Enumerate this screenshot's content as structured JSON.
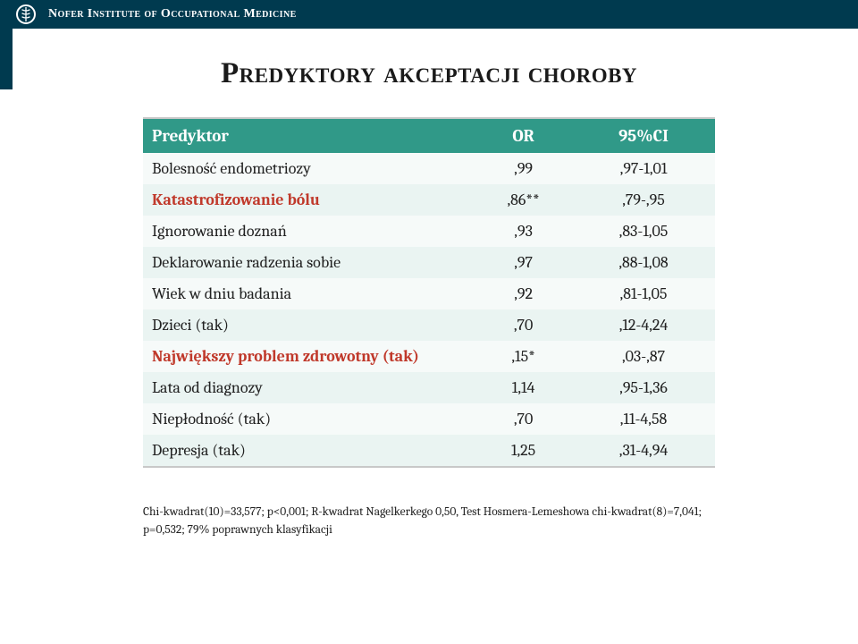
{
  "header": {
    "institution": "Nofer Institute of Occupational Medicine",
    "header_bg": "#003a4f"
  },
  "title": "Predyktory akceptacji choroby",
  "table": {
    "header_bg": "#309988",
    "header_fg": "#ffffff",
    "row_even_bg": "#eaf4f2",
    "row_odd_bg": "#f6faf9",
    "highlight_color": "#c0392b",
    "columns": [
      "Predyktor",
      "OR",
      "95%CI"
    ],
    "rows": [
      {
        "label": "Bolesność endometriozy",
        "or": ",99",
        "ci": ",97-1,01",
        "highlight": false
      },
      {
        "label": "Katastrofizowanie bólu",
        "or": ",86**",
        "ci": ",79-,95",
        "highlight": true
      },
      {
        "label": "Ignorowanie doznań",
        "or": ",93",
        "ci": ",83-1,05",
        "highlight": false
      },
      {
        "label": "Deklarowanie radzenia sobie",
        "or": ",97",
        "ci": ",88-1,08",
        "highlight": false
      },
      {
        "label": "Wiek w dniu badania",
        "or": ",92",
        "ci": ",81-1,05",
        "highlight": false
      },
      {
        "label": "Dzieci (tak)",
        "or": ",70",
        "ci": ",12-4,24",
        "highlight": false
      },
      {
        "label": "Największy problem zdrowotny (tak)",
        "or": ",15*",
        "ci": ",03-,87",
        "highlight": true
      },
      {
        "label": "Lata od diagnozy",
        "or": "1,14",
        "ci": ",95-1,36",
        "highlight": false
      },
      {
        "label": "Niepłodność (tak)",
        "or": ",70",
        "ci": ",11-4,58",
        "highlight": false
      },
      {
        "label": "Depresja (tak)",
        "or": "1,25",
        "ci": ",31-4,94",
        "highlight": false
      }
    ]
  },
  "footnote": {
    "line1": "Chi-kwadrat(10)=33,577; p<0,001; R-kwadrat Nagelkerkego 0,50, Test Hosmera-Lemeshowa chi-kwadrat(8)=7,041;",
    "line2": "p=0,532; 79% poprawnych klasyfikacji"
  }
}
